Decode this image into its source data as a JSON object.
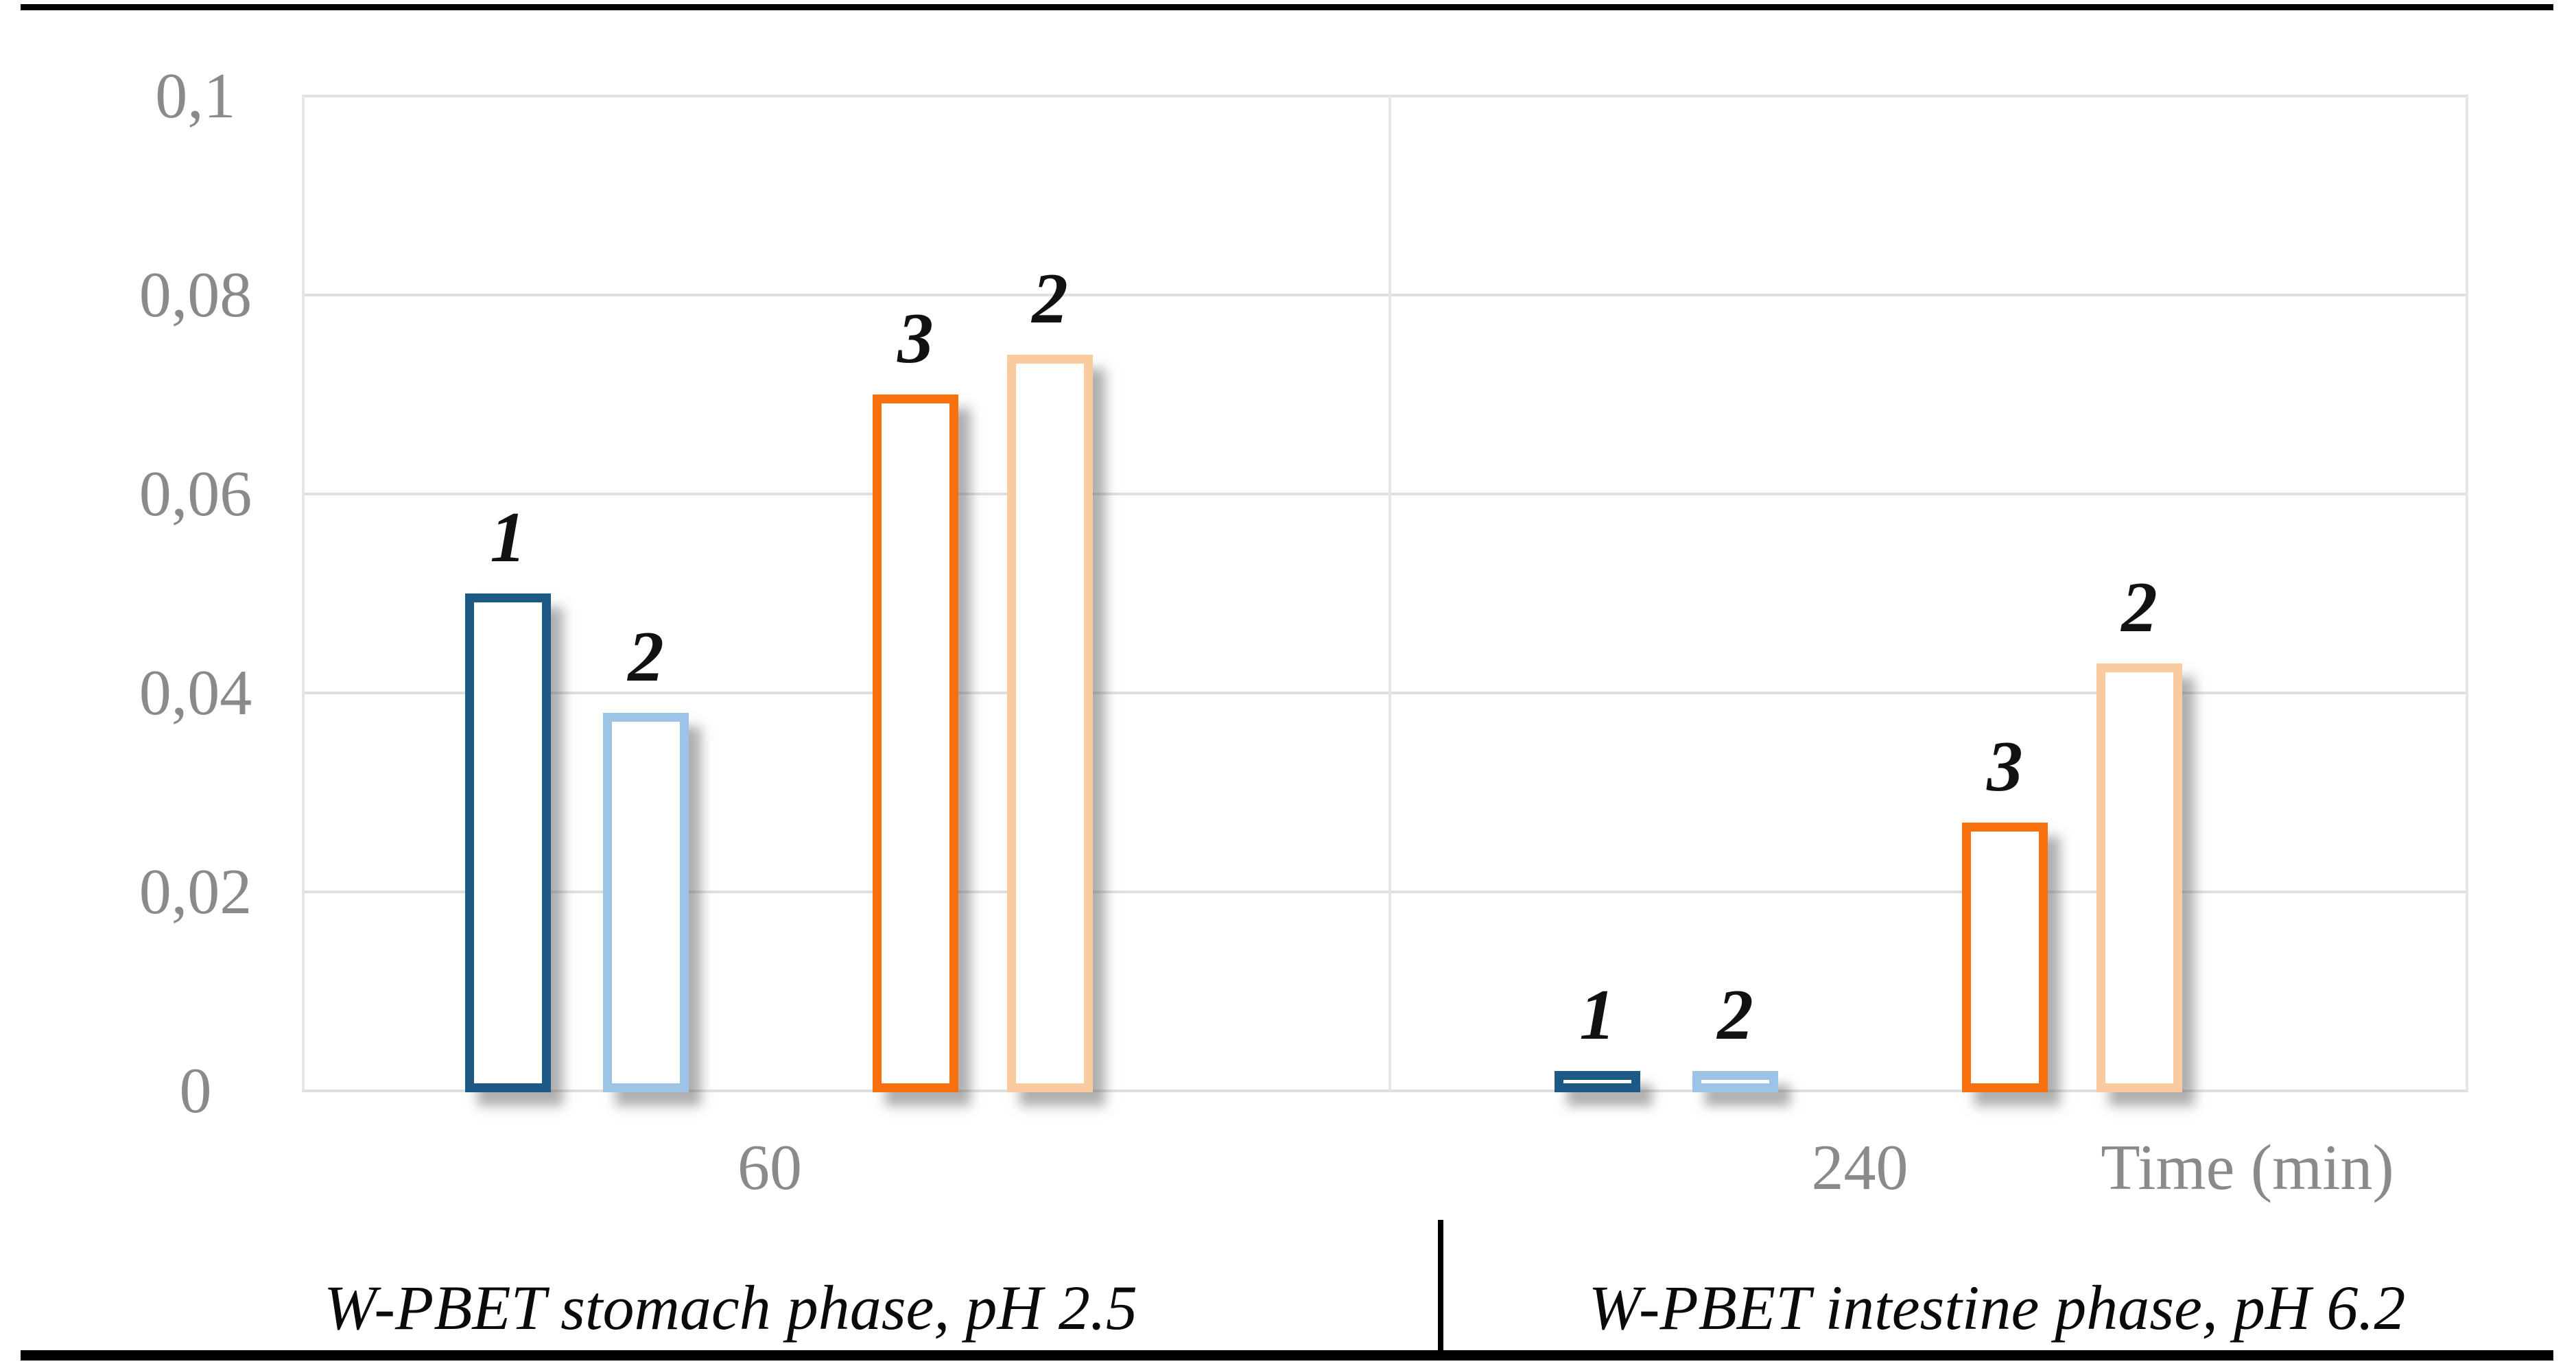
{
  "chart_data": {
    "type": "bar",
    "title": "",
    "xlabel": "Time (min)",
    "ylabel": "",
    "ylim": [
      0,
      0.1
    ],
    "grid": true,
    "decimal_separator": ",",
    "y_ticks": [
      "0,1",
      "0,08",
      "0,06",
      "0,04",
      "0,02",
      "0"
    ],
    "y_tick_values": [
      0.1,
      0.08,
      0.06,
      0.04,
      0.02,
      0
    ],
    "bar_style": "outlined-white-fill-with-drop-shadow",
    "groups": [
      {
        "x_tick": "60",
        "section_label": "W-PBET stomach phase, pH 2.5",
        "bars": [
          {
            "label": "1",
            "value": 0.05,
            "color": "#1c5a85"
          },
          {
            "label": "2",
            "value": 0.038,
            "color": "#9dc3e6"
          },
          {
            "label": "3",
            "value": 0.07,
            "color": "#f8700e"
          },
          {
            "label": "2",
            "value": 0.074,
            "color": "#fbcba0"
          }
        ]
      },
      {
        "x_tick": "240",
        "section_label": "W-PBET intestine phase, pH 6.2",
        "bars": [
          {
            "label": "1",
            "value": 0.002,
            "color": "#1c5a85"
          },
          {
            "label": "2",
            "value": 0.002,
            "color": "#9dc3e6"
          },
          {
            "label": "3",
            "value": 0.027,
            "color": "#f8700e"
          },
          {
            "label": "2",
            "value": 0.043,
            "color": "#fbcba0"
          }
        ]
      }
    ]
  },
  "colors": {
    "gridline": "#e0e0e0",
    "tick_text": "#8a8a8a",
    "label_text": "#111111",
    "rule": "#000000",
    "bar_fill": "#ffffff"
  }
}
